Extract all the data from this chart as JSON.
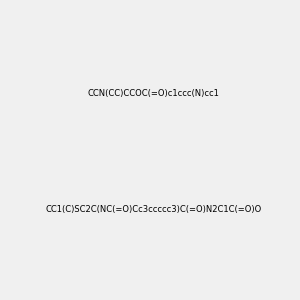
{
  "smiles1": "CCN(CC)CCOC(=O)c1ccc(N)cc1",
  "smiles2": "CC1(C)SC2C(NC(=O)Cc3ccccc3)C(=O)N2C1C(=O)O",
  "bg_color": "#f0f0f0",
  "fig_width": 3.0,
  "fig_height": 3.0,
  "dpi": 100,
  "title": ""
}
